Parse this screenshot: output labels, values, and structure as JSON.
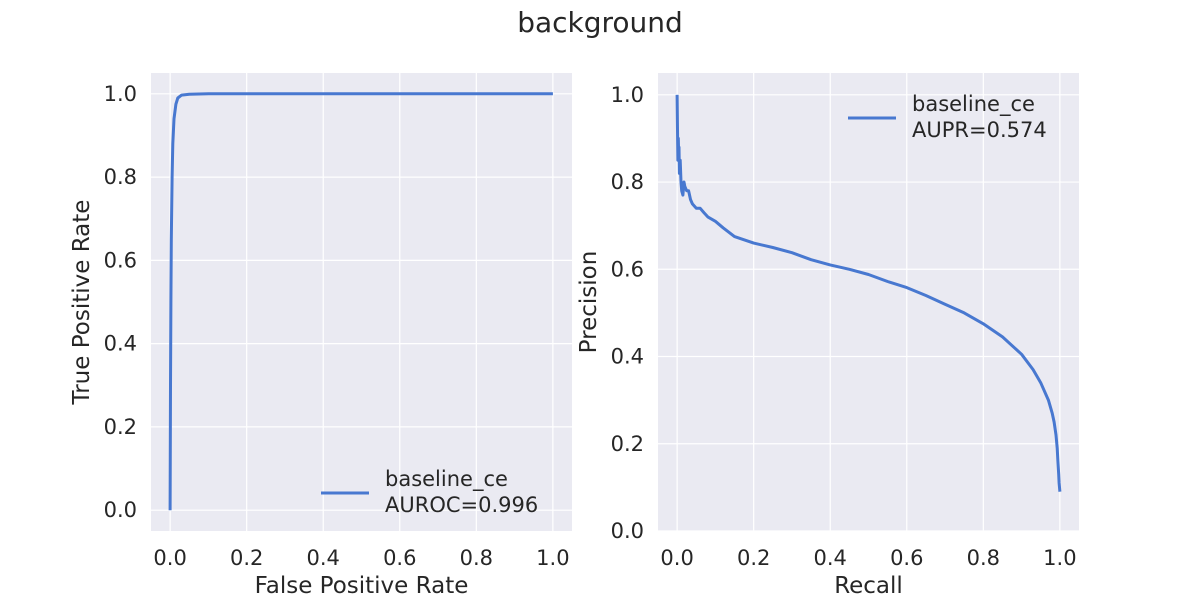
{
  "figure": {
    "title": "background"
  },
  "chart_data": [
    {
      "type": "line",
      "panel": "left",
      "title": "",
      "xlabel": "False Positive Rate",
      "ylabel": "True Positive Rate",
      "xlim": [
        -0.05,
        1.05
      ],
      "ylim": [
        -0.05,
        1.05
      ],
      "xticks": [
        0.0,
        0.2,
        0.4,
        0.6,
        0.8,
        1.0
      ],
      "yticks": [
        0.0,
        0.2,
        0.4,
        0.6,
        0.8,
        1.0
      ],
      "tick_labels_x": [
        "0.0",
        "0.2",
        "0.4",
        "0.6",
        "0.8",
        "1.0"
      ],
      "tick_labels_y": [
        "0.0",
        "0.2",
        "0.4",
        "0.6",
        "0.8",
        "1.0"
      ],
      "grid": true,
      "legend_position": "lower-right",
      "series": [
        {
          "name": "baseline_ce",
          "legend_lines": [
            "baseline_ce",
            "AUROC=0.996"
          ],
          "color": "#4878d0",
          "x": [
            0.0,
            0.001,
            0.002,
            0.003,
            0.005,
            0.007,
            0.01,
            0.015,
            0.02,
            0.03,
            0.05,
            0.1,
            0.2,
            0.4,
            0.6,
            0.8,
            1.0
          ],
          "y": [
            0.0,
            0.3,
            0.5,
            0.65,
            0.8,
            0.88,
            0.94,
            0.975,
            0.99,
            0.997,
            0.999,
            1.0,
            1.0,
            1.0,
            1.0,
            1.0,
            1.0
          ]
        }
      ]
    },
    {
      "type": "line",
      "panel": "right",
      "title": "",
      "xlabel": "Recall",
      "ylabel": "Precision",
      "xlim": [
        -0.05,
        1.05
      ],
      "ylim": [
        0.0,
        1.05
      ],
      "xticks": [
        0.0,
        0.2,
        0.4,
        0.6,
        0.8,
        1.0
      ],
      "yticks": [
        0.0,
        0.2,
        0.4,
        0.6,
        0.8,
        1.0
      ],
      "tick_labels_x": [
        "0.0",
        "0.2",
        "0.4",
        "0.6",
        "0.8",
        "1.0"
      ],
      "tick_labels_y": [
        "0.0",
        "0.2",
        "0.4",
        "0.6",
        "0.8",
        "1.0"
      ],
      "grid": true,
      "legend_position": "upper-right",
      "series": [
        {
          "name": "baseline_ce",
          "legend_lines": [
            "baseline_ce",
            "AUPR=0.574"
          ],
          "color": "#4878d0",
          "x": [
            0.0,
            0.001,
            0.002,
            0.003,
            0.004,
            0.005,
            0.006,
            0.008,
            0.01,
            0.012,
            0.015,
            0.018,
            0.02,
            0.025,
            0.03,
            0.035,
            0.04,
            0.05,
            0.06,
            0.07,
            0.08,
            0.1,
            0.12,
            0.15,
            0.2,
            0.25,
            0.3,
            0.35,
            0.4,
            0.45,
            0.5,
            0.55,
            0.6,
            0.65,
            0.7,
            0.75,
            0.8,
            0.85,
            0.9,
            0.93,
            0.95,
            0.97,
            0.98,
            0.985,
            0.99,
            0.993,
            0.995,
            0.997,
            0.998,
            0.999,
            1.0
          ],
          "y": [
            1.0,
            0.92,
            0.85,
            0.9,
            0.86,
            0.88,
            0.82,
            0.85,
            0.8,
            0.78,
            0.77,
            0.8,
            0.79,
            0.78,
            0.78,
            0.76,
            0.75,
            0.74,
            0.74,
            0.73,
            0.72,
            0.71,
            0.695,
            0.675,
            0.66,
            0.65,
            0.638,
            0.622,
            0.61,
            0.6,
            0.588,
            0.572,
            0.558,
            0.54,
            0.52,
            0.5,
            0.475,
            0.445,
            0.405,
            0.37,
            0.34,
            0.3,
            0.27,
            0.25,
            0.22,
            0.19,
            0.16,
            0.13,
            0.11,
            0.1,
            0.09
          ]
        }
      ]
    }
  ]
}
